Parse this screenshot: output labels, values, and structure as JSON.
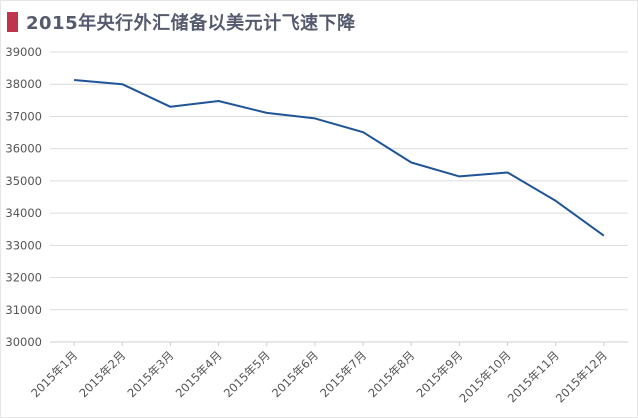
{
  "title": "2015年央行外汇储备以美元计飞速下降",
  "colors": {
    "title_marker": "#c0334d",
    "line": "#1f5597",
    "grid": "#dcdcdc",
    "axis": "#cfcfcf"
  },
  "chart_data": {
    "type": "line",
    "title": "2015年央行外汇储备以美元计飞速下降",
    "xlabel": "",
    "ylabel": "",
    "categories": [
      "2015年1月",
      "2015年2月",
      "2015年3月",
      "2015年4月",
      "2015年5月",
      "2015年6月",
      "2015年7月",
      "2015年8月",
      "2015年9月",
      "2015年10月",
      "2015年11月",
      "2015年12月"
    ],
    "series": [
      {
        "values": [
          38130,
          38000,
          37300,
          37480,
          37110,
          36940,
          36510,
          35570,
          35140,
          35260,
          34380,
          33300
        ]
      }
    ],
    "ylim": [
      30000,
      39000
    ],
    "yticks": [
      "30000",
      "31000",
      "32000",
      "33000",
      "34000",
      "35000",
      "36000",
      "37000",
      "38000",
      "39000"
    ],
    "grid": true,
    "legend": "none"
  }
}
